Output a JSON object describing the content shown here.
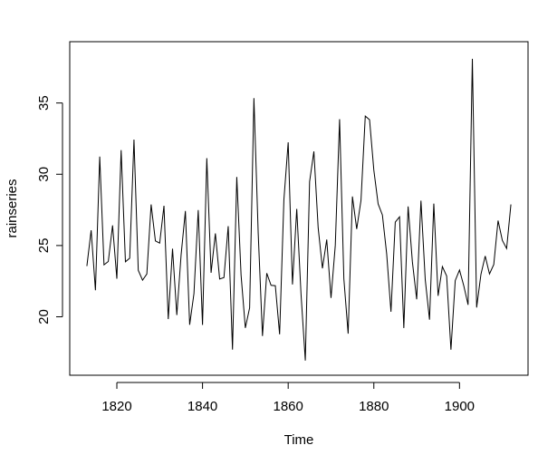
{
  "chart_data": {
    "type": "line",
    "xlabel": "Time",
    "ylabel": "rainseries",
    "xlim": [
      1809,
      1916
    ],
    "ylim": [
      15.9,
      39.3
    ],
    "x_ticks": [
      1820,
      1840,
      1860,
      1880,
      1900
    ],
    "y_ticks": [
      20,
      25,
      30,
      35
    ],
    "x_tick_labels": [
      "1820",
      "1840",
      "1860",
      "1880",
      "1900"
    ],
    "y_tick_labels": [
      "20",
      "25",
      "30",
      "35"
    ],
    "grid": false,
    "line_color": "#000000",
    "x": [
      1813,
      1814,
      1815,
      1816,
      1817,
      1818,
      1819,
      1820,
      1821,
      1822,
      1823,
      1824,
      1825,
      1826,
      1827,
      1828,
      1829,
      1830,
      1831,
      1832,
      1833,
      1834,
      1835,
      1836,
      1837,
      1838,
      1839,
      1840,
      1841,
      1842,
      1843,
      1844,
      1845,
      1846,
      1847,
      1848,
      1849,
      1850,
      1851,
      1852,
      1853,
      1854,
      1855,
      1856,
      1857,
      1858,
      1859,
      1860,
      1861,
      1862,
      1863,
      1864,
      1865,
      1866,
      1867,
      1868,
      1869,
      1870,
      1871,
      1872,
      1873,
      1874,
      1875,
      1876,
      1877,
      1878,
      1879,
      1880,
      1881,
      1882,
      1883,
      1884,
      1885,
      1886,
      1887,
      1888,
      1889,
      1890,
      1891,
      1892,
      1893,
      1894,
      1895,
      1896,
      1897,
      1898,
      1899,
      1900,
      1901,
      1902,
      1903,
      1904,
      1905,
      1906,
      1907,
      1908,
      1909,
      1910,
      1911,
      1912
    ],
    "values": [
      23.56,
      26.07,
      21.86,
      31.24,
      23.65,
      23.88,
      26.41,
      22.67,
      31.69,
      23.86,
      24.11,
      32.43,
      23.26,
      22.57,
      23.0,
      27.88,
      25.32,
      25.17,
      27.79,
      19.84,
      24.78,
      20.12,
      24.34,
      27.42,
      19.44,
      21.63,
      27.49,
      19.43,
      31.13,
      23.09,
      25.85,
      22.65,
      22.75,
      26.36,
      17.7,
      29.81,
      22.93,
      19.22,
      20.63,
      35.34,
      25.89,
      18.65,
      23.06,
      22.21,
      22.18,
      18.77,
      28.21,
      32.24,
      22.27,
      27.57,
      21.59,
      16.93,
      29.48,
      31.6,
      26.25,
      23.4,
      25.42,
      21.32,
      25.02,
      33.86,
      22.67,
      18.82,
      28.44,
      26.16,
      28.17,
      34.08,
      33.82,
      30.28,
      27.92,
      27.14,
      24.4,
      20.35,
      26.64,
      27.01,
      19.21,
      27.74,
      23.85,
      21.23,
      28.15,
      22.61,
      19.8,
      27.94,
      21.47,
      23.52,
      22.86,
      17.69,
      22.54,
      23.28,
      22.17,
      20.84,
      38.1,
      20.65,
      22.97,
      24.26,
      23.01,
      23.67,
      26.75,
      25.36,
      24.79,
      27.88
    ]
  }
}
